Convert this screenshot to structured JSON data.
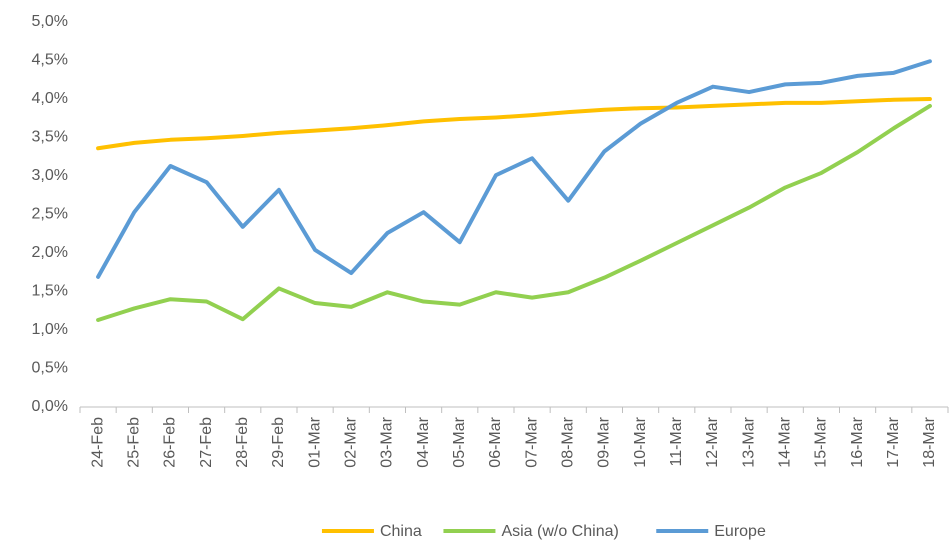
{
  "chart_data": {
    "type": "line",
    "categories": [
      "24-Feb",
      "25-Feb",
      "26-Feb",
      "27-Feb",
      "28-Feb",
      "29-Feb",
      "01-Mar",
      "02-Mar",
      "03-Mar",
      "04-Mar",
      "05-Mar",
      "06-Mar",
      "07-Mar",
      "08-Mar",
      "09-Mar",
      "10-Mar",
      "11-Mar",
      "12-Mar",
      "13-Mar",
      "14-Mar",
      "15-Mar",
      "16-Mar",
      "17-Mar",
      "18-Mar"
    ],
    "series": [
      {
        "name": "China",
        "color": "#ffc000",
        "values": [
          3.36,
          3.43,
          3.47,
          3.49,
          3.52,
          3.56,
          3.59,
          3.62,
          3.66,
          3.71,
          3.74,
          3.76,
          3.79,
          3.83,
          3.86,
          3.88,
          3.89,
          3.91,
          3.93,
          3.95,
          3.95,
          3.97,
          3.99,
          4.0
        ]
      },
      {
        "name": "Asia (w/o China)",
        "color": "#92d050",
        "values": [
          1.13,
          1.28,
          1.4,
          1.37,
          1.14,
          1.54,
          1.35,
          1.3,
          1.49,
          1.37,
          1.33,
          1.49,
          1.42,
          1.49,
          1.68,
          1.9,
          2.13,
          2.36,
          2.59,
          2.85,
          3.04,
          3.31,
          3.62,
          3.91
        ]
      },
      {
        "name": "Europe",
        "color": "#5b9bd5",
        "values": [
          1.69,
          2.53,
          3.13,
          2.92,
          2.34,
          2.82,
          2.04,
          1.74,
          2.26,
          2.53,
          2.14,
          3.01,
          3.23,
          2.68,
          3.32,
          3.68,
          3.95,
          4.16,
          4.09,
          4.19,
          4.21,
          4.3,
          4.34,
          4.49
        ]
      }
    ],
    "ylim": [
      0,
      5
    ],
    "yticks": [
      {
        "value": 0,
        "label": "0,0%"
      },
      {
        "value": 0.5,
        "label": "0,5%"
      },
      {
        "value": 1,
        "label": "1,0%"
      },
      {
        "value": 1.5,
        "label": "1,5%"
      },
      {
        "value": 2,
        "label": "2,0%"
      },
      {
        "value": 2.5,
        "label": "2,5%"
      },
      {
        "value": 3,
        "label": "3,0%"
      },
      {
        "value": 3.5,
        "label": "3,5%"
      },
      {
        "value": 4,
        "label": "4,0%"
      },
      {
        "value": 4.5,
        "label": "4,5%"
      },
      {
        "value": 5,
        "label": "5,0%"
      }
    ],
    "grid": false,
    "legend": "bottom"
  }
}
